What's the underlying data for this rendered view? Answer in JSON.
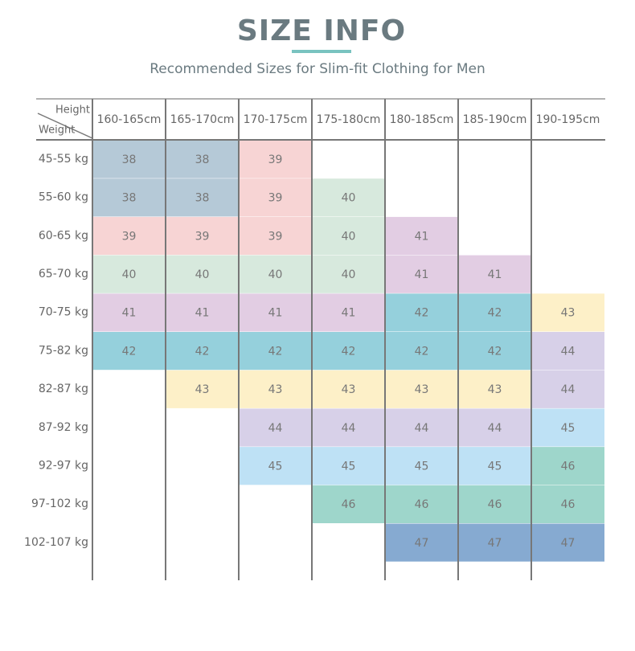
{
  "header": {
    "title": "SIZE INFO",
    "subtitle": "Recommended Sizes for Slim-fit Clothing for Men"
  },
  "table": {
    "corner": {
      "top": "Height",
      "bottom": "Weight"
    },
    "columns": [
      "160-165cm",
      "165-170cm",
      "170-175cm",
      "175-180cm",
      "180-185cm",
      "185-190cm",
      "190-195cm"
    ],
    "size_colors": {
      "38": "#b5c9d7",
      "39": "#f7d4d4",
      "40": "#d7e9dd",
      "41": "#e2cde3",
      "42": "#95d0dc",
      "43": "#fdf0c8",
      "44": "#d7d0e8",
      "45": "#bee1f5",
      "46": "#9ed6cb",
      "47": "#86aad1"
    },
    "rows": [
      {
        "label": "45-55 kg",
        "cells": [
          38,
          38,
          39,
          null,
          null,
          null,
          null
        ]
      },
      {
        "label": "55-60 kg",
        "cells": [
          38,
          38,
          39,
          40,
          null,
          null,
          null
        ]
      },
      {
        "label": "60-65 kg",
        "cells": [
          39,
          39,
          39,
          40,
          41,
          null,
          null
        ]
      },
      {
        "label": "65-70 kg",
        "cells": [
          40,
          40,
          40,
          40,
          41,
          41,
          null
        ]
      },
      {
        "label": "70-75 kg",
        "cells": [
          41,
          41,
          41,
          41,
          42,
          42,
          43
        ]
      },
      {
        "label": "75-82 kg",
        "cells": [
          42,
          42,
          42,
          42,
          42,
          42,
          44
        ]
      },
      {
        "label": "82-87 kg",
        "cells": [
          null,
          43,
          43,
          43,
          43,
          43,
          44
        ]
      },
      {
        "label": "87-92 kg",
        "cells": [
          null,
          null,
          44,
          44,
          44,
          44,
          45
        ]
      },
      {
        "label": "92-97 kg",
        "cells": [
          null,
          null,
          45,
          45,
          45,
          45,
          46
        ]
      },
      {
        "label": "97-102 kg",
        "cells": [
          null,
          null,
          null,
          46,
          46,
          46,
          46
        ]
      },
      {
        "label": "102-107 kg",
        "cells": [
          null,
          null,
          null,
          null,
          47,
          47,
          47
        ]
      }
    ]
  }
}
